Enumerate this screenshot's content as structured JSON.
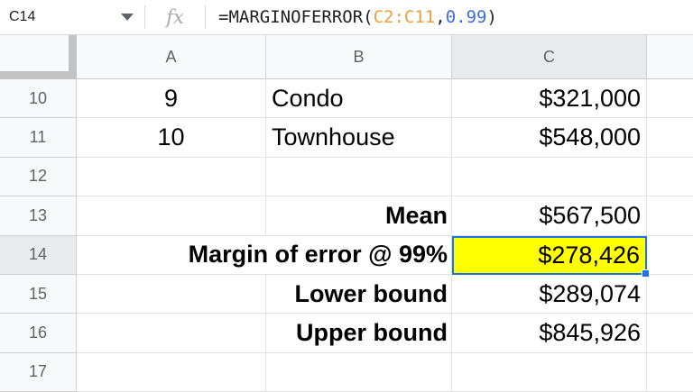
{
  "formula_bar": {
    "name_box": "C14",
    "fx_label": "fx",
    "formula": {
      "prefix": "=MARGINOFERROR(",
      "range": "C2:C11",
      "separator": ",",
      "number": "0.99",
      "suffix": ")"
    }
  },
  "column_headers": {
    "a": "A",
    "b": "B",
    "c": "C"
  },
  "selection": {
    "active_cell": "C14",
    "selected_column": "C",
    "selected_row": "14"
  },
  "colors": {
    "selection_blue": "#1a73e8",
    "highlight_yellow": "#ffff00",
    "formula_range_orange": "#ef9e3d",
    "formula_number_blue": "#3b6ce0",
    "header_bg": "#f8f9fa",
    "header_selected_bg": "#e8eaed",
    "header_text": "#5f6368",
    "gridline": "#e1e1e1"
  },
  "rows": [
    {
      "num": "10",
      "a": "9",
      "b": "Condo",
      "c": "$321,000"
    },
    {
      "num": "11",
      "a": "10",
      "b": "Townhouse",
      "c": "$548,000"
    },
    {
      "num": "12",
      "a": "",
      "b": "",
      "c": ""
    },
    {
      "num": "13",
      "a": "",
      "b": "Mean",
      "c": "$567,500"
    },
    {
      "num": "14",
      "ab": "Margin of error @ 99%",
      "c": "$278,426"
    },
    {
      "num": "15",
      "a": "",
      "b": "Lower bound",
      "c": "$289,074"
    },
    {
      "num": "16",
      "a": "",
      "b": "Upper bound",
      "c": "$845,926"
    },
    {
      "num": "17",
      "a": "",
      "b": "",
      "c": ""
    }
  ]
}
